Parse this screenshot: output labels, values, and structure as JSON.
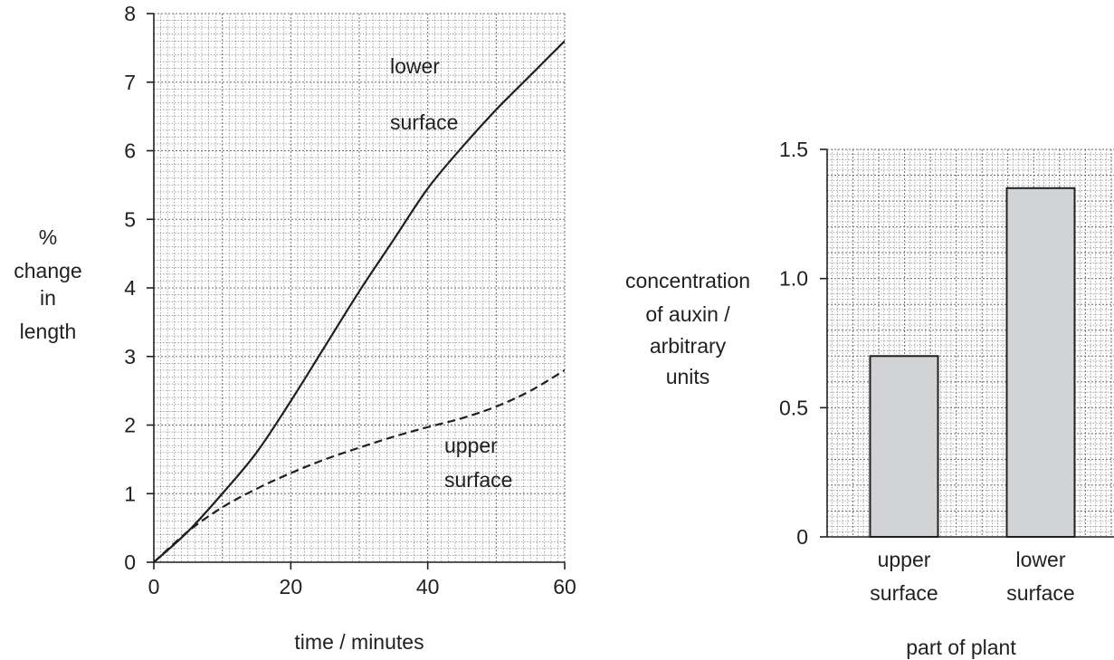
{
  "chart_data": [
    {
      "type": "line",
      "title": "",
      "xlabel": "time / minutes",
      "ylabel": [
        "%",
        "change",
        "in",
        "length"
      ],
      "xlim": [
        0,
        60
      ],
      "ylim": [
        0,
        8
      ],
      "xticks": [
        0,
        20,
        40,
        60
      ],
      "yticks": [
        0,
        1,
        2,
        3,
        4,
        5,
        6,
        7,
        8
      ],
      "grid": true,
      "series": [
        {
          "name": "lower surface",
          "label_lines": [
            "lower",
            "surface"
          ],
          "style": "solid",
          "x": [
            0,
            5,
            10,
            15,
            20,
            25,
            30,
            35,
            40,
            45,
            50,
            55,
            60
          ],
          "y": [
            0,
            0.45,
            1.0,
            1.6,
            2.35,
            3.15,
            3.95,
            4.7,
            5.45,
            6.05,
            6.6,
            7.1,
            7.6
          ]
        },
        {
          "name": "upper surface",
          "label_lines": [
            "upper",
            "surface"
          ],
          "style": "dashed",
          "x": [
            0,
            5,
            10,
            15,
            20,
            25,
            30,
            35,
            40,
            45,
            50,
            55,
            60
          ],
          "y": [
            0,
            0.45,
            0.8,
            1.07,
            1.3,
            1.5,
            1.67,
            1.83,
            1.97,
            2.1,
            2.27,
            2.5,
            2.8
          ]
        }
      ]
    },
    {
      "type": "bar",
      "title": "",
      "xlabel": "part of plant",
      "ylabel": [
        "concentration",
        "of auxin /",
        "arbitrary",
        "units"
      ],
      "ylim": [
        0,
        1.5
      ],
      "yticks": [
        "0",
        "0.5",
        "1.0",
        "1.5"
      ],
      "ytick_values": [
        0,
        0.5,
        1.0,
        1.5
      ],
      "grid": true,
      "bar_color": "#d1d3d4",
      "categories": [
        {
          "lines": [
            "upper",
            "surface"
          ],
          "value": 0.7
        },
        {
          "lines": [
            "lower",
            "surface"
          ],
          "value": 1.35
        }
      ]
    }
  ]
}
